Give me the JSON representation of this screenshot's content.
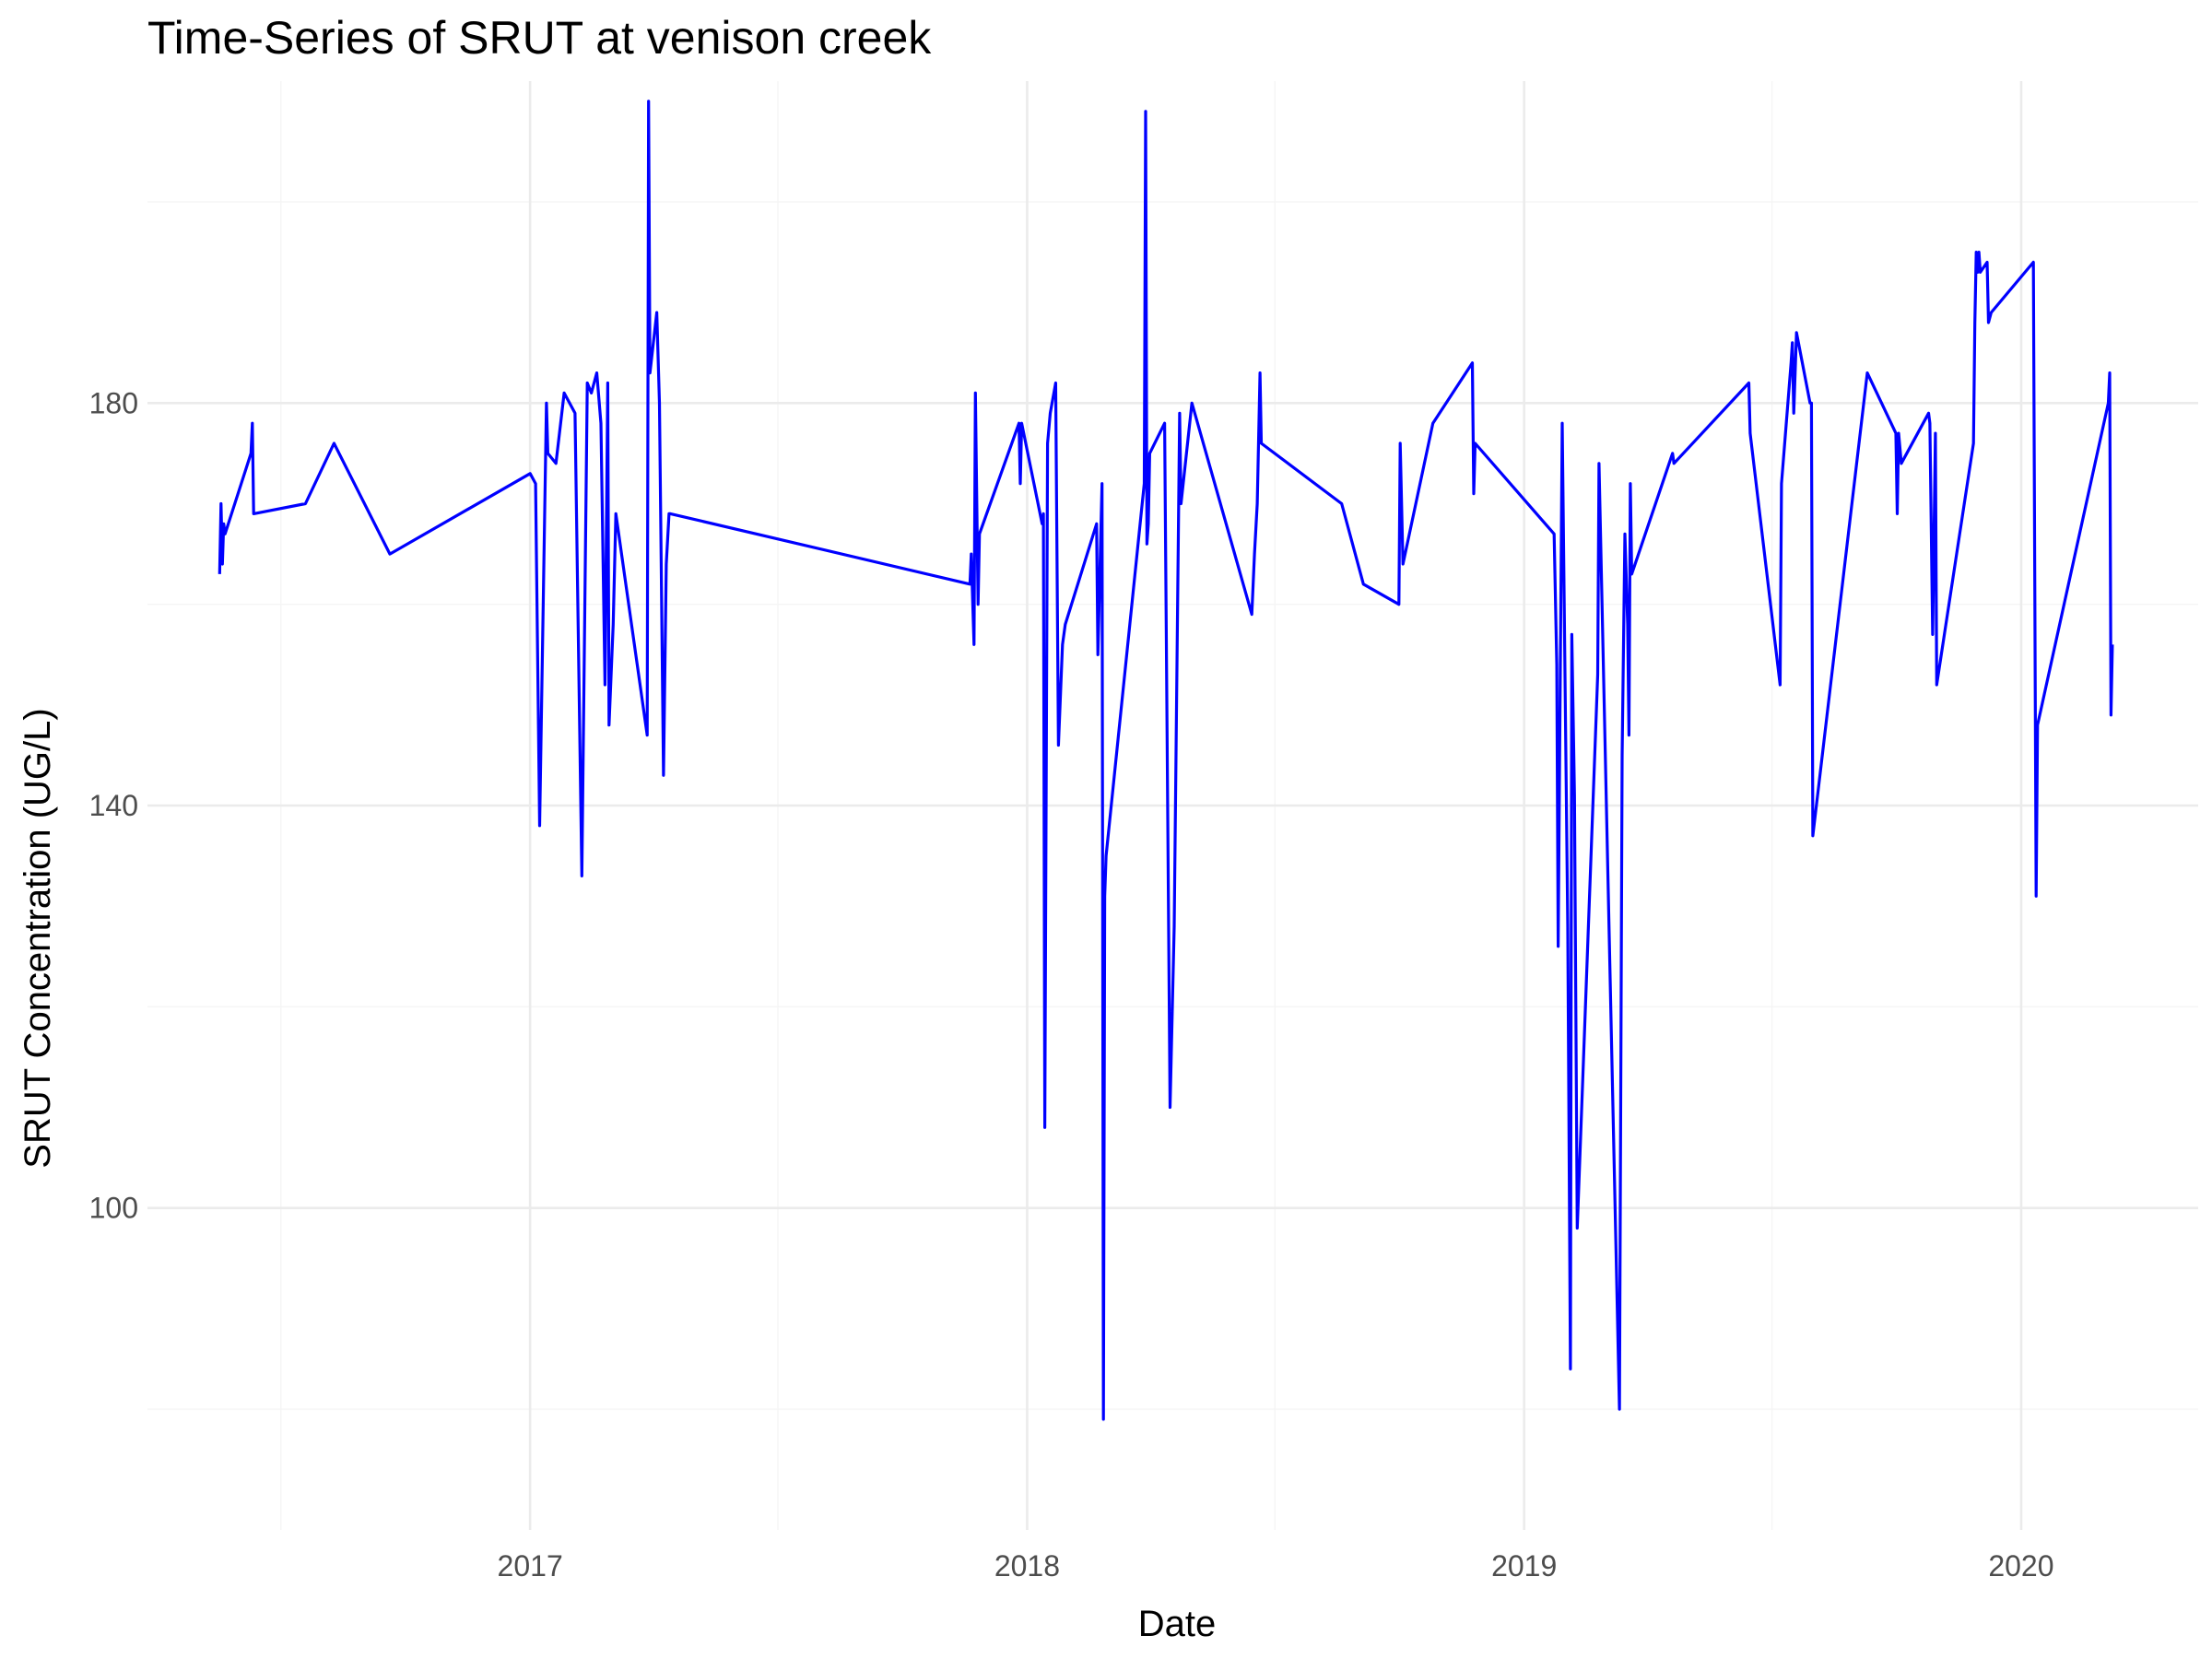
{
  "chart_data": {
    "type": "line",
    "title": "Time-Series of SRUT at venison creek",
    "xlabel": "Date",
    "ylabel": "SRUT Concentration (UG/L)",
    "x_tick_labels": [
      "2017",
      "2018",
      "2019",
      "2020"
    ],
    "y_tick_labels": [
      "100",
      "140",
      "180"
    ],
    "x_range": [
      "2016-03-26",
      "2020-05-10"
    ],
    "ylim": [
      68,
      212
    ],
    "grid": true,
    "legend": "none",
    "line_color": "#0000FF",
    "series": [
      {
        "x": [
          "2016-05-18",
          "2016-05-19",
          "2016-05-20",
          "2016-05-21",
          "2016-05-22",
          "2016-06-10",
          "2016-06-11",
          "2016-06-12",
          "2016-07-20",
          "2016-08-10",
          "2016-09-20",
          "2017-01-01",
          "2017-01-05",
          "2017-01-08",
          "2017-01-13",
          "2017-01-14",
          "2017-01-20",
          "2017-01-26",
          "2017-02-03",
          "2017-02-08",
          "2017-02-12",
          "2017-02-15",
          "2017-02-19",
          "2017-02-22",
          "2017-02-25",
          "2017-02-27",
          "2017-02-28",
          "2017-03-03",
          "2017-03-05",
          "2017-03-28",
          "2017-03-29",
          "2017-03-30",
          "2017-04-04",
          "2017-04-06",
          "2017-04-09",
          "2017-04-11",
          "2017-04-13",
          "2017-04-14",
          "2017-11-20",
          "2017-11-21",
          "2017-11-23",
          "2017-11-24",
          "2017-11-26",
          "2017-11-27",
          "2017-12-26",
          "2017-12-27",
          "2017-12-28",
          "2018-01-12",
          "2018-01-13",
          "2018-01-14",
          "2018-01-16",
          "2018-01-18",
          "2018-01-22",
          "2018-01-24",
          "2018-01-27",
          "2018-01-29",
          "2018-02-21",
          "2018-02-22",
          "2018-02-25",
          "2018-02-26",
          "2018-02-27",
          "2018-02-28",
          "2018-03-28",
          "2018-03-29",
          "2018-03-30",
          "2018-03-31",
          "2018-04-01",
          "2018-04-12",
          "2018-04-16",
          "2018-04-19",
          "2018-04-23",
          "2018-04-24",
          "2018-05-02",
          "2018-06-15",
          "2018-06-17",
          "2018-06-19",
          "2018-06-21",
          "2018-06-22",
          "2018-08-20",
          "2018-09-05",
          "2018-10-01",
          "2018-10-02",
          "2018-10-04",
          "2018-10-26",
          "2018-11-24",
          "2018-11-25",
          "2018-11-26",
          "2019-01-23",
          "2019-01-25",
          "2019-01-26",
          "2019-01-29",
          "2019-02-02",
          "2019-02-04",
          "2019-02-05",
          "2019-02-07",
          "2019-02-09",
          "2019-02-24",
          "2019-02-25",
          "2019-03-12",
          "2019-03-14",
          "2019-03-16",
          "2019-03-18",
          "2019-03-19",
          "2019-03-20",
          "2019-03-21",
          "2019-04-20",
          "2019-04-21",
          "2019-06-15",
          "2019-06-16",
          "2019-07-08",
          "2019-07-09",
          "2019-07-16",
          "2019-07-17",
          "2019-07-18",
          "2019-07-20",
          "2019-07-30",
          "2019-07-31",
          "2019-08-01",
          "2019-09-10",
          "2019-10-01",
          "2019-10-02",
          "2019-10-03",
          "2019-10-05",
          "2019-10-25",
          "2019-10-26",
          "2019-10-28",
          "2019-10-30",
          "2019-10-31",
          "2019-11-27",
          "2019-11-28",
          "2019-11-29",
          "2019-11-30",
          "2019-12-01",
          "2019-12-02",
          "2019-12-07",
          "2019-12-08",
          "2019-12-10",
          "2020-01-10",
          "2020-01-12",
          "2020-01-13",
          "2020-03-05",
          "2020-03-06",
          "2020-03-07",
          "2020-03-08"
        ],
        "y": [
          163,
          170,
          164,
          168,
          167,
          175,
          178,
          169,
          170,
          176,
          165,
          173,
          172,
          138,
          180,
          175,
          174,
          181,
          179,
          133,
          182,
          181,
          183,
          178,
          152,
          182,
          148,
          158,
          169,
          147,
          210,
          183,
          189,
          180,
          143,
          164,
          169,
          169,
          162,
          165,
          156,
          181,
          160,
          167,
          178,
          172,
          178,
          168,
          169,
          108,
          176,
          179,
          182,
          146,
          156,
          158,
          168,
          155,
          172,
          79,
          131,
          135,
          172,
          209,
          166,
          168,
          175,
          178,
          110,
          128,
          179,
          170,
          180,
          159,
          165,
          170,
          183,
          176,
          170,
          162,
          160,
          176,
          164,
          178,
          184,
          171,
          176,
          167,
          154,
          126,
          178,
          128,
          84,
          157,
          141,
          98,
          153,
          174,
          80,
          145,
          167,
          158,
          147,
          172,
          163,
          175,
          174,
          182,
          177,
          152,
          172,
          184,
          186,
          179,
          187,
          180,
          180,
          137,
          183,
          177,
          169,
          177,
          174,
          179,
          178,
          157,
          177,
          152,
          176,
          188,
          195,
          193,
          195,
          193,
          194,
          188,
          189,
          194,
          131,
          148,
          180,
          183,
          149,
          156
        ]
      }
    ]
  }
}
